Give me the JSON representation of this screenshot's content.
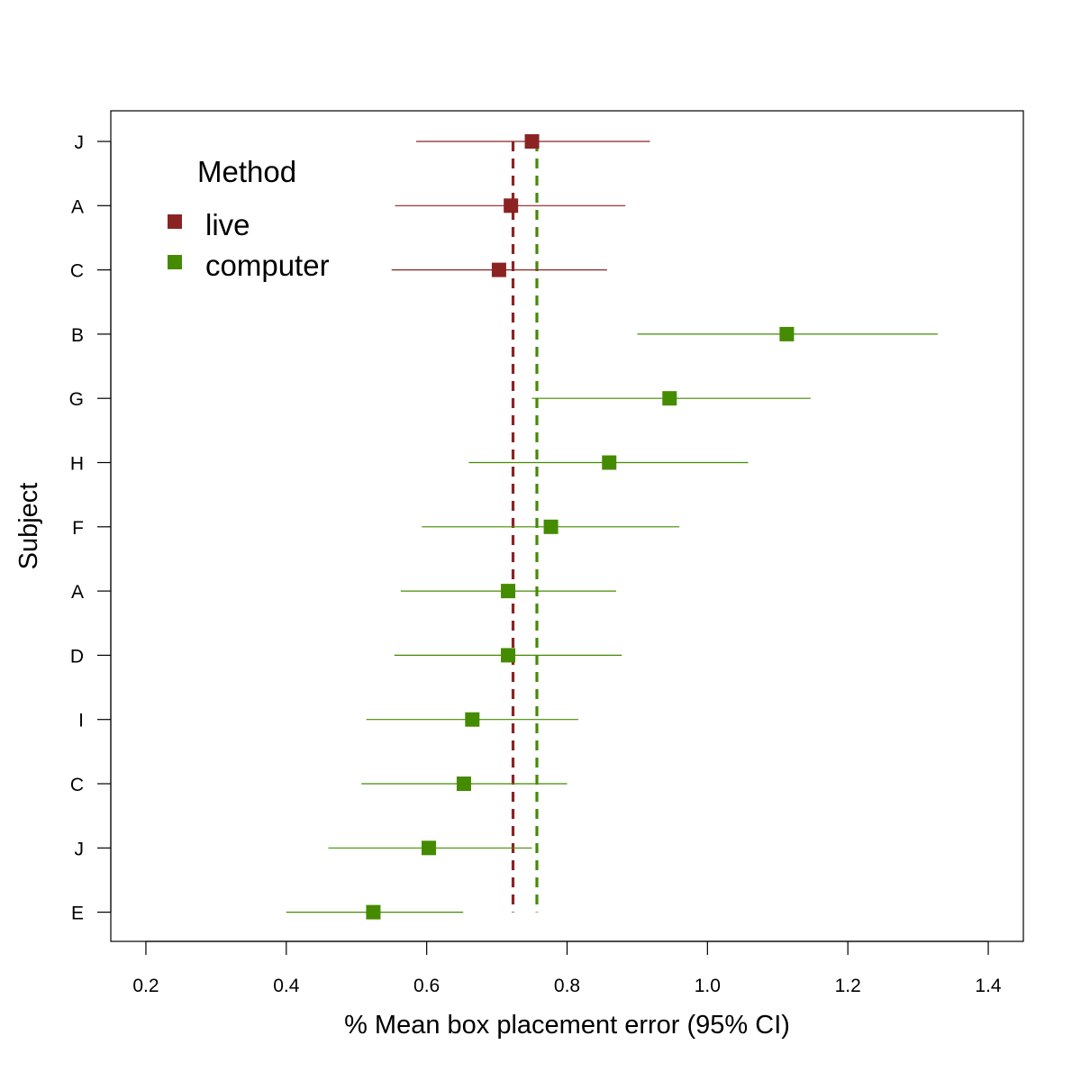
{
  "chart_data": {
    "type": "forest",
    "xlabel": "% Mean box placement error (95% CI)",
    "ylabel": "Subject",
    "xlim": [
      0.15,
      1.45
    ],
    "x_ticks": [
      0.2,
      0.4,
      0.6,
      0.8,
      1.0,
      1.2,
      1.4
    ],
    "x_tick_labels": [
      "0.2",
      "0.4",
      "0.6",
      "0.8",
      "1.0",
      "1.2",
      "1.4"
    ],
    "grid": false,
    "legend": {
      "title": "Method",
      "position": "top-left",
      "entries": [
        {
          "label": "live",
          "color": "#8B2323"
        },
        {
          "label": "computer",
          "color": "#458B00"
        }
      ]
    },
    "rows": [
      {
        "subject": "J",
        "method": "live",
        "mean": 0.75,
        "lower": 0.585,
        "upper": 0.918
      },
      {
        "subject": "A",
        "method": "live",
        "mean": 0.72,
        "lower": 0.555,
        "upper": 0.883
      },
      {
        "subject": "C",
        "method": "live",
        "mean": 0.703,
        "lower": 0.55,
        "upper": 0.857
      },
      {
        "subject": "B",
        "method": "computer",
        "mean": 1.113,
        "lower": 0.9,
        "upper": 1.328
      },
      {
        "subject": "G",
        "method": "computer",
        "mean": 0.946,
        "lower": 0.75,
        "upper": 1.147
      },
      {
        "subject": "H",
        "method": "computer",
        "mean": 0.86,
        "lower": 0.66,
        "upper": 1.058
      },
      {
        "subject": "F",
        "method": "computer",
        "mean": 0.777,
        "lower": 0.593,
        "upper": 0.96
      },
      {
        "subject": "A",
        "method": "computer",
        "mean": 0.716,
        "lower": 0.563,
        "upper": 0.87
      },
      {
        "subject": "D",
        "method": "computer",
        "mean": 0.716,
        "lower": 0.554,
        "upper": 0.878
      },
      {
        "subject": "I",
        "method": "computer",
        "mean": 0.665,
        "lower": 0.514,
        "upper": 0.816
      },
      {
        "subject": "C",
        "method": "computer",
        "mean": 0.653,
        "lower": 0.507,
        "upper": 0.8
      },
      {
        "subject": "J",
        "method": "computer",
        "mean": 0.603,
        "lower": 0.46,
        "upper": 0.75
      },
      {
        "subject": "E",
        "method": "computer",
        "mean": 0.524,
        "lower": 0.4,
        "upper": 0.652
      }
    ],
    "reference_lines": [
      {
        "method": "live",
        "x": 0.723,
        "color": "#8B2323",
        "style": "dashed"
      },
      {
        "method": "computer",
        "x": 0.757,
        "color": "#458B00",
        "style": "dashed"
      }
    ]
  }
}
